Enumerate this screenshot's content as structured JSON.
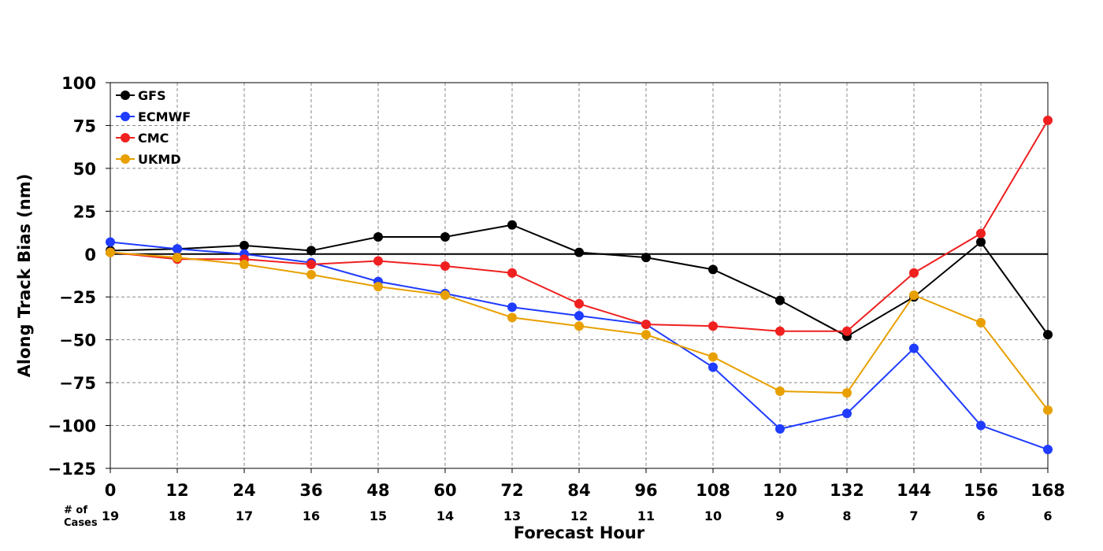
{
  "chart_data": {
    "type": "line",
    "title": "",
    "xlabel": "Forecast Hour",
    "ylabel": "Along Track Bias (nm)",
    "x": [
      0,
      12,
      24,
      36,
      48,
      60,
      72,
      84,
      96,
      108,
      120,
      132,
      144,
      156,
      168
    ],
    "xlim": [
      0,
      168
    ],
    "ylim": [
      -125,
      100
    ],
    "yticks": [
      100,
      75,
      50,
      25,
      0,
      -25,
      -50,
      -75,
      -100,
      -125
    ],
    "ytick_labels": [
      "100",
      "75",
      "50",
      "25",
      "0",
      "−25",
      "−50",
      "−75",
      "−100",
      "−125"
    ],
    "grid": true,
    "zero_line": true,
    "legend_position": "top-left",
    "series": [
      {
        "name": "GFS",
        "color": "#000000",
        "values": [
          2,
          3,
          5,
          2,
          10,
          10,
          17,
          1,
          -2,
          -9,
          -27,
          -48,
          -25,
          7,
          -47
        ]
      },
      {
        "name": "ECMWF",
        "color": "#1f3cff",
        "values": [
          7,
          3,
          0,
          -5,
          -16,
          -23,
          -31,
          -36,
          -41,
          -66,
          -102,
          -93,
          -55,
          -100,
          -114
        ]
      },
      {
        "name": "CMC",
        "color": "#f02020",
        "values": [
          1,
          -3,
          -3,
          -6,
          -4,
          -7,
          -11,
          -29,
          -41,
          -42,
          -45,
          -45,
          -11,
          12,
          78
        ]
      },
      {
        "name": "UKMD",
        "color": "#e8a000",
        "values": [
          1,
          -2,
          -6,
          -12,
          -19,
          -24,
          -37,
          -42,
          -47,
          -60,
          -80,
          -81,
          -24,
          -40,
          -91
        ]
      }
    ],
    "cases": {
      "label_line1": "# of",
      "label_line2": "Cases",
      "values": [
        "19",
        "18",
        "17",
        "16",
        "15",
        "14",
        "13",
        "12",
        "11",
        "10",
        "9",
        "8",
        "7",
        "6",
        "6"
      ]
    }
  }
}
